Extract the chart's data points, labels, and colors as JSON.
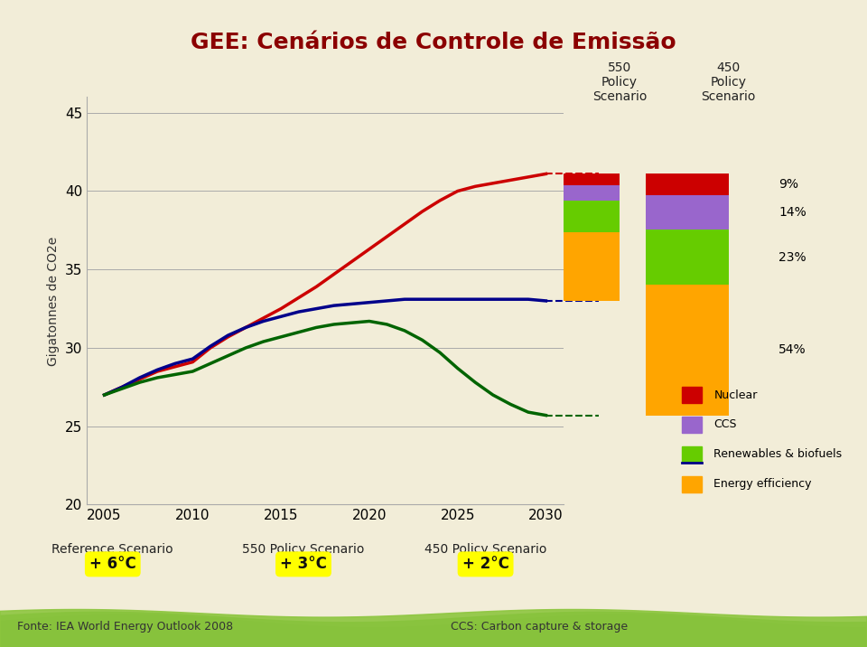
{
  "title": "GEE: Cenários de Controle de Emissão",
  "title_color": "#8B0000",
  "bg_color": "#F2EDD8",
  "ylabel": "Gigatonnes de CO2e",
  "xlabel_years": [
    2005,
    2010,
    2015,
    2020,
    2025,
    2030
  ],
  "ylim": [
    20,
    46
  ],
  "yticks": [
    20,
    25,
    30,
    35,
    40,
    45
  ],
  "ref_x": [
    2005,
    2006,
    2007,
    2008,
    2009,
    2010,
    2011,
    2012,
    2013,
    2014,
    2015,
    2016,
    2017,
    2018,
    2019,
    2020,
    2021,
    2022,
    2023,
    2024,
    2025,
    2026,
    2027,
    2028,
    2029,
    2030
  ],
  "ref_y": [
    27.0,
    27.5,
    28.0,
    28.5,
    28.8,
    29.1,
    30.0,
    30.7,
    31.3,
    31.9,
    32.5,
    33.2,
    33.9,
    34.7,
    35.5,
    36.3,
    37.1,
    37.9,
    38.7,
    39.4,
    40.0,
    40.3,
    40.5,
    40.7,
    40.9,
    41.1
  ],
  "ref_color": "#CC0000",
  "policy550_x": [
    2005,
    2006,
    2007,
    2008,
    2009,
    2010,
    2011,
    2012,
    2013,
    2014,
    2015,
    2016,
    2017,
    2018,
    2019,
    2020,
    2021,
    2022,
    2023,
    2024,
    2025,
    2026,
    2027,
    2028,
    2029,
    2030
  ],
  "policy550_y": [
    27.0,
    27.5,
    28.1,
    28.6,
    29.0,
    29.3,
    30.1,
    30.8,
    31.3,
    31.7,
    32.0,
    32.3,
    32.5,
    32.7,
    32.8,
    32.9,
    33.0,
    33.1,
    33.1,
    33.1,
    33.1,
    33.1,
    33.1,
    33.1,
    33.1,
    33.0
  ],
  "policy550_color": "#00008B",
  "policy450_x": [
    2005,
    2006,
    2007,
    2008,
    2009,
    2010,
    2011,
    2012,
    2013,
    2014,
    2015,
    2016,
    2017,
    2018,
    2019,
    2020,
    2021,
    2022,
    2023,
    2024,
    2025,
    2026,
    2027,
    2028,
    2029,
    2030
  ],
  "policy450_y": [
    27.0,
    27.4,
    27.8,
    28.1,
    28.3,
    28.5,
    29.0,
    29.5,
    30.0,
    30.4,
    30.7,
    31.0,
    31.3,
    31.5,
    31.6,
    31.7,
    31.5,
    31.1,
    30.5,
    29.7,
    28.7,
    27.8,
    27.0,
    26.4,
    25.9,
    25.7
  ],
  "policy450_color": "#006400",
  "nuclear_color": "#CC0000",
  "ccs_color": "#9966CC",
  "renewables_color": "#66CC00",
  "efficiency_color": "#FFA500",
  "p550_eff": 0.54,
  "p550_ren": 0.25,
  "p550_ccs": 0.12,
  "p550_nuc": 0.09,
  "p450_eff": 0.54,
  "p450_ren": 0.23,
  "p450_ccs": 0.14,
  "p450_nuc": 0.09,
  "legend_items": [
    "Nuclear",
    "CCS",
    "Renewables & biofuels",
    "Energy efficiency"
  ],
  "legend_colors": [
    "#CC0000",
    "#9966CC",
    "#66CC00",
    "#FFA500"
  ],
  "footer_left": "Fonte: IEA World Energy Outlook 2008",
  "footer_right": "CCS: Carbon capture & storage",
  "label_ref": "Reference Scenario",
  "label_550": "550 Policy Scenario",
  "label_450": "450 Policy Scenario",
  "label_temp_ref": "+ 6°C",
  "label_temp_550": "+ 3°C",
  "label_temp_450": "+ 2°C"
}
